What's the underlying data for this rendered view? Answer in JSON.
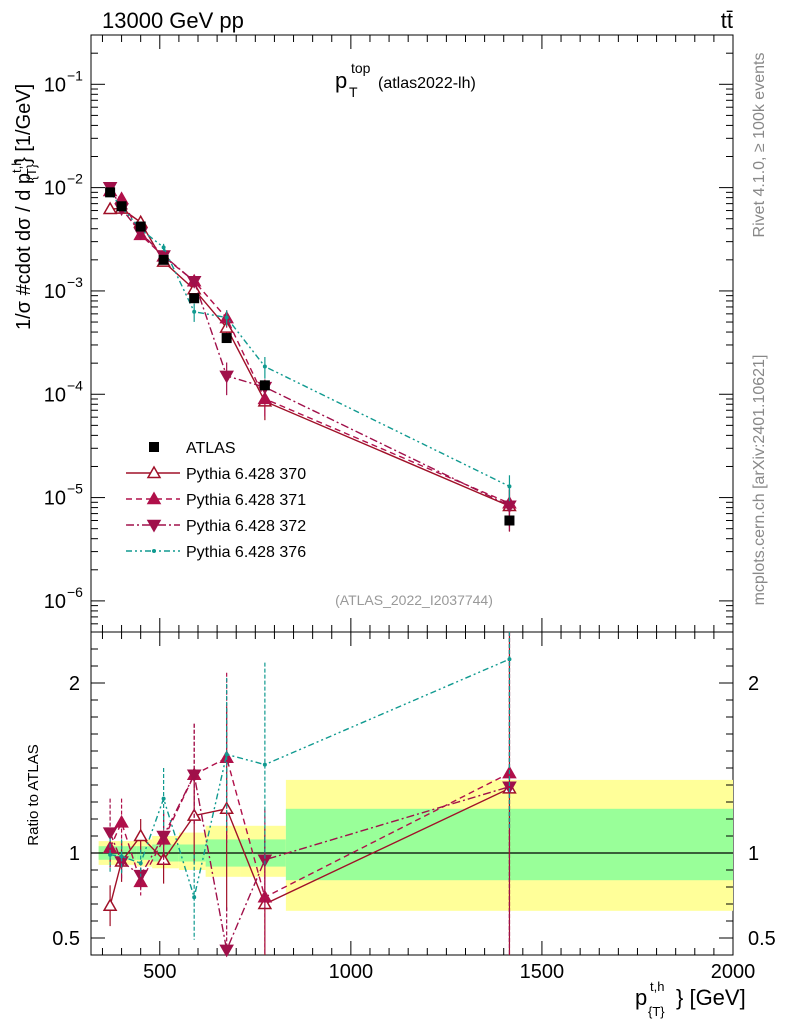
{
  "header": {
    "left_label": "13000 GeV pp",
    "right_label": "tt̄"
  },
  "plot_title": {
    "main": "p",
    "sup": "top",
    "sub": "T",
    "suffix": "(atlas2022-lh)"
  },
  "side_labels": {
    "rivet": "Rivet 4.1.0, ≥ 100k events",
    "mcplots": "mcplots.cern.ch [arXiv:2401.10621]"
  },
  "analysis_id": "(ATLAS_2022_I2037744)",
  "y_axis_label": {
    "prefix": "1/σ #cdot dσ / d p",
    "sup": "t,h",
    "sub": "{T}",
    "suffix": "} [1/GeV]"
  },
  "x_axis_label": {
    "main": "p",
    "sup": "t,h",
    "sub": "{T}",
    "suffix": "} [GeV]"
  },
  "ratio_axis_label": "Ratio to ATLAS",
  "colors": {
    "atlas": "#000000",
    "p370": "#a01028",
    "p371": "#b0104a",
    "p372": "#a0104a",
    "p376": "#109a90",
    "band_inner": "#99ff99",
    "band_outer": "#ffff99"
  },
  "chart_data": {
    "type": "line",
    "x_range": [
      320,
      2000
    ],
    "main_ylim_log": [
      5e-07,
      0.3
    ],
    "ratio_ylim": [
      0.4,
      2.3
    ],
    "x_ticks": [
      500,
      1000,
      1500,
      2000
    ],
    "main_y_ticks": [
      {
        "value": 1e-06,
        "base": "10",
        "exp": "−6"
      },
      {
        "value": 1e-05,
        "base": "10",
        "exp": "−5"
      },
      {
        "value": 0.0001,
        "base": "10",
        "exp": "−4"
      },
      {
        "value": 0.001,
        "base": "10",
        "exp": "−3"
      },
      {
        "value": 0.01,
        "base": "10",
        "exp": "−2"
      },
      {
        "value": 0.1,
        "base": "10",
        "exp": "−1"
      }
    ],
    "ratio_y_ticks": [
      {
        "value": 0.5,
        "label": "0.5"
      },
      {
        "value": 1,
        "label": "1"
      },
      {
        "value": 2,
        "label": "2"
      }
    ],
    "bin_edges": [
      340,
      400,
      440,
      480,
      550,
      620,
      710,
      830,
      2000
    ],
    "bin_centers": [
      370,
      400,
      450,
      510,
      590,
      675,
      775,
      1415
    ],
    "atlas": {
      "name": "ATLAS",
      "values": [
        0.009,
        0.0066,
        0.0042,
        0.002,
        0.00085,
        0.00035,
        0.000122,
        6e-06
      ],
      "band_inner": [
        [
          0.96,
          1.04
        ],
        [
          0.96,
          1.04
        ],
        [
          0.96,
          1.04
        ],
        [
          0.95,
          1.05
        ],
        [
          0.95,
          1.05
        ],
        [
          0.92,
          1.08
        ],
        [
          0.92,
          1.08
        ],
        [
          0.84,
          1.26
        ]
      ],
      "band_outer": [
        [
          0.93,
          1.07
        ],
        [
          0.93,
          1.07
        ],
        [
          0.92,
          1.08
        ],
        [
          0.91,
          1.1
        ],
        [
          0.9,
          1.12
        ],
        [
          0.86,
          1.16
        ],
        [
          0.86,
          1.16
        ],
        [
          0.66,
          1.43
        ]
      ]
    },
    "series": [
      {
        "name": "Pythia 6.428 370",
        "key": "p370",
        "marker": "triangle-up-open",
        "dash": "solid",
        "ratios": [
          0.69,
          0.95,
          1.1,
          0.96,
          1.22,
          1.26,
          0.7,
          1.38
        ],
        "ratio_err": [
          0.12,
          0.12,
          0.1,
          0.14,
          0.28,
          0.6,
          0.4,
          1.0
        ]
      },
      {
        "name": "Pythia 6.428 371",
        "key": "p371",
        "marker": "triangle-up-filled",
        "dash": "dash",
        "ratios": [
          1.03,
          1.18,
          0.83,
          1.08,
          1.46,
          1.56,
          0.74,
          1.47
        ],
        "ratio_err": [
          0.12,
          0.14,
          0.08,
          0.15,
          0.3,
          0.5,
          0.4,
          1.0
        ]
      },
      {
        "name": "Pythia 6.428 372",
        "key": "p372",
        "marker": "triangle-down-filled",
        "dash": "dashdot",
        "ratios": [
          1.12,
          0.95,
          0.87,
          1.1,
          1.46,
          0.43,
          0.96,
          1.39
        ],
        "ratio_err": [
          0.2,
          0.1,
          0.08,
          0.14,
          0.3,
          0.25,
          0.3,
          1.0
        ]
      },
      {
        "name": "Pythia 6.428 376",
        "key": "p376",
        "marker": "dot",
        "dash": "dashdotdot",
        "ratios": [
          0.99,
          0.98,
          0.94,
          1.32,
          0.74,
          1.58,
          1.52,
          2.14
        ],
        "ratio_err": [
          0.1,
          0.1,
          0.08,
          0.18,
          0.25,
          0.45,
          0.6,
          1.0
        ]
      }
    ]
  }
}
